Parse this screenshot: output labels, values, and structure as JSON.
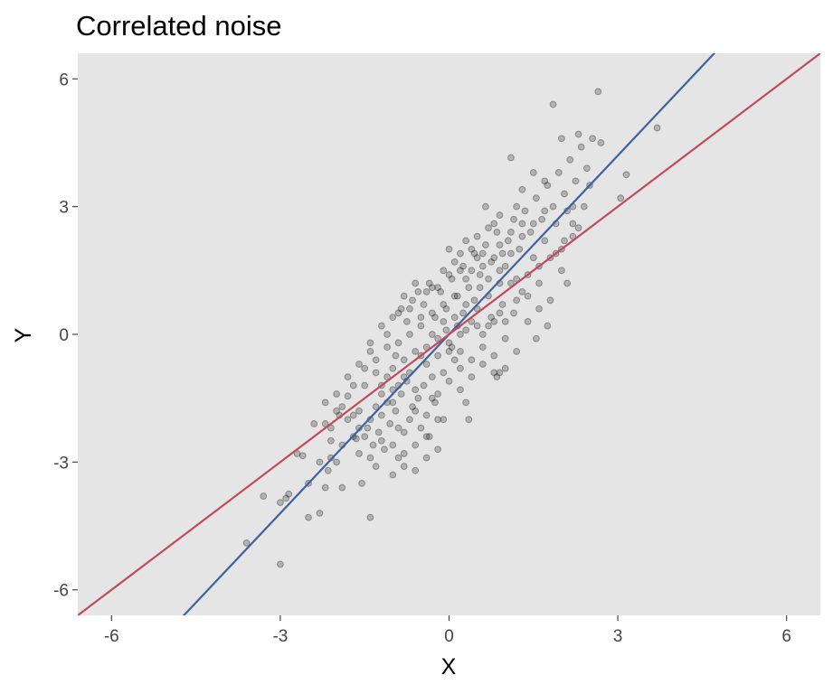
{
  "chart_data": {
    "type": "scatter",
    "title": "Correlated noise",
    "xlabel": "X",
    "ylabel": "Y",
    "xlim": [
      -6.6,
      6.6
    ],
    "ylim": [
      -6.6,
      6.6
    ],
    "x_ticks": [
      -6,
      -3,
      0,
      3,
      6
    ],
    "y_ticks": [
      -6,
      -3,
      0,
      3,
      6
    ],
    "x_tick_labels": [
      "-6",
      "-3",
      "0",
      "3",
      "6"
    ],
    "y_tick_labels": [
      "-6",
      "-3",
      "0",
      "3",
      "6"
    ],
    "grid": false,
    "panel_background": "#e5e5e5",
    "point_color": "#000000",
    "lines": [
      {
        "color": "#3f61a0",
        "slope": 1.4,
        "intercept": 0
      },
      {
        "color": "#c04a5e",
        "slope": 1.0,
        "intercept": 0
      }
    ],
    "points": [
      [
        -3.6,
        -4.9
      ],
      [
        -3.0,
        -5.4
      ],
      [
        -3.3,
        -3.8
      ],
      [
        -3.0,
        -3.95
      ],
      [
        -2.9,
        -3.85
      ],
      [
        -2.85,
        -3.75
      ],
      [
        -2.5,
        -4.3
      ],
      [
        -2.3,
        -4.2
      ],
      [
        -2.2,
        -3.6
      ],
      [
        -2.15,
        -3.2
      ],
      [
        -2.0,
        -3.0
      ],
      [
        -1.9,
        -3.6
      ],
      [
        -1.4,
        -4.3
      ],
      [
        -2.6,
        -2.85
      ],
      [
        -2.7,
        -2.8
      ],
      [
        -2.1,
        -2.9
      ],
      [
        -2.1,
        -2.2
      ],
      [
        -1.95,
        -1.9
      ],
      [
        -1.8,
        -1.45
      ],
      [
        -1.7,
        -1.9
      ],
      [
        -1.65,
        -2.45
      ],
      [
        -1.6,
        -2.8
      ],
      [
        -1.55,
        -3.5
      ],
      [
        -1.5,
        -2.4
      ],
      [
        -1.45,
        -2.2
      ],
      [
        -1.4,
        -2.0
      ],
      [
        -1.35,
        -2.6
      ],
      [
        -1.3,
        -1.7
      ],
      [
        -1.25,
        -2.3
      ],
      [
        -1.2,
        -1.9
      ],
      [
        -1.15,
        -2.7
      ],
      [
        -1.1,
        -1.6
      ],
      [
        -1.05,
        -2.1
      ],
      [
        -1.0,
        -1.3
      ],
      [
        -0.95,
        -1.8
      ],
      [
        -0.9,
        -2.9
      ],
      [
        -0.85,
        -1.4
      ],
      [
        -0.8,
        -2.3
      ],
      [
        -0.75,
        -1.1
      ],
      [
        -0.7,
        -2.0
      ],
      [
        -0.65,
        -1.7
      ],
      [
        -0.6,
        -2.6
      ],
      [
        -0.55,
        -1.5
      ],
      [
        -0.5,
        -2.2
      ],
      [
        -0.45,
        -1.2
      ],
      [
        -0.4,
        -1.9
      ],
      [
        -0.35,
        -2.4
      ],
      [
        -0.3,
        -1.0
      ],
      [
        -0.25,
        -1.6
      ],
      [
        -0.2,
        -2.0
      ],
      [
        -1.3,
        -3.1
      ],
      [
        -1.0,
        -3.3
      ],
      [
        -0.8,
        -3.1
      ],
      [
        -0.6,
        -3.2
      ],
      [
        -0.4,
        -2.9
      ],
      [
        -1.7,
        -2.4
      ],
      [
        -1.5,
        -1.2
      ],
      [
        -1.6,
        -1.8
      ],
      [
        -1.4,
        -0.4
      ],
      [
        -1.3,
        -0.9
      ],
      [
        -1.1,
        -0.3
      ],
      [
        -1.0,
        -0.8
      ],
      [
        -0.9,
        -0.2
      ],
      [
        -0.8,
        -0.6
      ],
      [
        -0.7,
        0.0
      ],
      [
        -0.6,
        -0.4
      ],
      [
        -0.5,
        0.2
      ],
      [
        -0.4,
        -0.3
      ],
      [
        -0.3,
        0.5
      ],
      [
        -0.2,
        -0.1
      ],
      [
        -0.1,
        0.3
      ],
      [
        0.0,
        -0.2
      ],
      [
        0.1,
        0.4
      ],
      [
        0.2,
        -0.4
      ],
      [
        0.3,
        0.1
      ],
      [
        0.4,
        -0.6
      ],
      [
        0.5,
        0.6
      ],
      [
        0.6,
        -0.3
      ],
      [
        0.7,
        0.2
      ],
      [
        0.8,
        -0.9
      ],
      [
        0.9,
        0.5
      ],
      [
        1.0,
        -0.1
      ],
      [
        -1.2,
        -1.4
      ],
      [
        -1.1,
        -1.0
      ],
      [
        -0.95,
        -0.5
      ],
      [
        -0.85,
        0.6
      ],
      [
        -0.75,
        0.3
      ],
      [
        -0.65,
        0.8
      ],
      [
        -0.55,
        1.0
      ],
      [
        -0.45,
        0.7
      ],
      [
        -0.35,
        1.2
      ],
      [
        -0.25,
        0.4
      ],
      [
        -0.15,
        1.0
      ],
      [
        -0.05,
        0.6
      ],
      [
        0.05,
        1.3
      ],
      [
        0.15,
        0.9
      ],
      [
        0.25,
        1.6
      ],
      [
        0.35,
        1.1
      ],
      [
        0.45,
        1.9
      ],
      [
        0.55,
        1.4
      ],
      [
        0.65,
        2.1
      ],
      [
        0.75,
        1.7
      ],
      [
        0.85,
        2.4
      ],
      [
        0.95,
        1.9
      ],
      [
        1.05,
        2.2
      ],
      [
        1.15,
        2.7
      ],
      [
        1.25,
        2.0
      ],
      [
        1.35,
        2.9
      ],
      [
        1.45,
        2.4
      ],
      [
        1.55,
        3.2
      ],
      [
        1.65,
        2.7
      ],
      [
        1.75,
        3.5
      ],
      [
        1.85,
        3.0
      ],
      [
        1.95,
        3.8
      ],
      [
        2.05,
        3.3
      ],
      [
        2.15,
        4.1
      ],
      [
        2.25,
        3.6
      ],
      [
        2.35,
        4.4
      ],
      [
        2.45,
        3.9
      ],
      [
        2.55,
        4.6
      ],
      [
        1.85,
        5.4
      ],
      [
        2.65,
        5.7
      ],
      [
        2.7,
        4.5
      ],
      [
        3.7,
        4.85
      ],
      [
        3.15,
        3.75
      ],
      [
        3.05,
        3.2
      ],
      [
        2.3,
        4.7
      ],
      [
        2.0,
        4.6
      ],
      [
        1.1,
        4.15
      ],
      [
        1.5,
        3.8
      ],
      [
        1.7,
        3.6
      ],
      [
        1.3,
        3.4
      ],
      [
        0.65,
        3.0
      ],
      [
        0.8,
        2.6
      ],
      [
        1.2,
        3.0
      ],
      [
        2.2,
        3.0
      ],
      [
        2.5,
        3.5
      ],
      [
        2.3,
        2.5
      ],
      [
        2.05,
        2.2
      ],
      [
        2.2,
        2.3
      ],
      [
        1.0,
        1.6
      ],
      [
        1.2,
        1.3
      ],
      [
        1.4,
        0.9
      ],
      [
        1.6,
        1.2
      ],
      [
        1.8,
        0.8
      ],
      [
        2.0,
        1.5
      ],
      [
        2.1,
        1.2
      ],
      [
        1.9,
        1.9
      ],
      [
        1.7,
        2.2
      ],
      [
        1.5,
        1.8
      ],
      [
        1.3,
        2.3
      ],
      [
        1.1,
        1.9
      ],
      [
        0.9,
        1.2
      ],
      [
        0.7,
        0.9
      ],
      [
        0.5,
        0.2
      ],
      [
        0.3,
        0.7
      ],
      [
        0.1,
        -0.6
      ],
      [
        -0.1,
        -0.9
      ],
      [
        0.2,
        -1.3
      ],
      [
        0.4,
        -1.0
      ],
      [
        0.6,
        -0.7
      ],
      [
        0.8,
        -0.5
      ],
      [
        1.0,
        -0.8
      ],
      [
        1.2,
        -0.4
      ],
      [
        1.4,
        0.3
      ],
      [
        1.6,
        0.6
      ],
      [
        1.75,
        0.2
      ],
      [
        1.55,
        -0.1
      ],
      [
        0.9,
        -0.9
      ],
      [
        0.85,
        -1.0
      ],
      [
        0.3,
        -1.6
      ],
      [
        0.0,
        -1.1
      ],
      [
        -0.2,
        -1.4
      ],
      [
        0.35,
        -2.0
      ],
      [
        0.2,
        -0.8
      ],
      [
        0.05,
        -0.3
      ],
      [
        -0.05,
        0.1
      ],
      [
        0.15,
        0.2
      ],
      [
        0.25,
        0.5
      ],
      [
        0.45,
        0.8
      ],
      [
        0.55,
        1.1
      ],
      [
        0.75,
        0.4
      ],
      [
        0.95,
        0.7
      ],
      [
        1.15,
        0.5
      ],
      [
        0.6,
        1.6
      ],
      [
        0.4,
        1.5
      ],
      [
        0.2,
        1.9
      ],
      [
        0.0,
        2.0
      ],
      [
        0.3,
        2.2
      ],
      [
        0.5,
        2.3
      ],
      [
        0.7,
        2.5
      ],
      [
        0.9,
        2.8
      ],
      [
        0.1,
        1.7
      ],
      [
        -0.1,
        1.5
      ],
      [
        -0.3,
        1.1
      ],
      [
        -0.5,
        0.4
      ],
      [
        -0.7,
        0.6
      ],
      [
        -0.9,
        0.5
      ],
      [
        -1.1,
        0.0
      ],
      [
        -1.3,
        -0.6
      ],
      [
        -1.5,
        -0.8
      ],
      [
        -1.7,
        -1.2
      ],
      [
        -1.9,
        -1.7
      ],
      [
        -2.1,
        -2.5
      ],
      [
        -2.3,
        -3.0
      ],
      [
        -2.5,
        -3.5
      ],
      [
        -1.8,
        -2.0
      ],
      [
        -1.6,
        -2.2
      ],
      [
        -1.2,
        -2.5
      ],
      [
        -0.9,
        -2.2
      ],
      [
        -0.6,
        -1.8
      ],
      [
        -0.3,
        -1.5
      ],
      [
        -0.1,
        -2.0
      ],
      [
        -0.4,
        -2.4
      ],
      [
        -0.2,
        -2.7
      ],
      [
        -0.8,
        -2.8
      ],
      [
        -1.0,
        -2.6
      ],
      [
        -1.4,
        -2.9
      ],
      [
        -1.9,
        -2.6
      ],
      [
        -2.2,
        -2.1
      ],
      [
        -2.0,
        -1.8
      ],
      [
        -1.2,
        -1.2
      ],
      [
        -1.0,
        -1.6
      ],
      [
        -0.8,
        -1.0
      ],
      [
        -0.6,
        -1.3
      ],
      [
        -0.4,
        -0.7
      ],
      [
        -0.2,
        -0.5
      ],
      [
        0.0,
        -0.4
      ],
      [
        0.2,
        0.0
      ],
      [
        0.4,
        0.3
      ],
      [
        0.6,
        0.0
      ],
      [
        0.8,
        0.3
      ],
      [
        1.0,
        0.3
      ],
      [
        1.2,
        0.8
      ],
      [
        1.4,
        1.4
      ],
      [
        1.6,
        1.6
      ],
      [
        1.8,
        1.8
      ],
      [
        2.0,
        2.0
      ],
      [
        2.2,
        2.6
      ],
      [
        2.4,
        3.0
      ],
      [
        1.3,
        1.0
      ],
      [
        1.1,
        1.2
      ],
      [
        0.9,
        1.5
      ],
      [
        0.7,
        1.3
      ],
      [
        0.5,
        1.8
      ],
      [
        0.3,
        1.3
      ],
      [
        0.1,
        0.9
      ],
      [
        -0.1,
        0.7
      ],
      [
        -0.3,
        0.0
      ],
      [
        -0.5,
        -0.5
      ],
      [
        -0.7,
        -0.9
      ],
      [
        -0.9,
        -1.2
      ],
      [
        1.9,
        2.6
      ],
      [
        2.1,
        2.9
      ],
      [
        1.7,
        2.9
      ],
      [
        1.5,
        2.6
      ],
      [
        1.3,
        2.6
      ],
      [
        1.1,
        2.4
      ],
      [
        0.9,
        2.1
      ],
      [
        0.8,
        1.8
      ],
      [
        0.6,
        1.9
      ],
      [
        0.4,
        2.0
      ],
      [
        0.2,
        1.5
      ],
      [
        0.0,
        1.4
      ],
      [
        -0.2,
        1.1
      ],
      [
        -0.4,
        1.0
      ],
      [
        -0.6,
        1.2
      ],
      [
        -0.8,
        0.9
      ],
      [
        -1.0,
        0.4
      ],
      [
        -1.2,
        0.2
      ],
      [
        -1.4,
        -0.2
      ],
      [
        -1.6,
        -0.7
      ],
      [
        -1.8,
        -1.0
      ],
      [
        -2.0,
        -1.4
      ],
      [
        -2.2,
        -1.6
      ],
      [
        -2.4,
        -2.1
      ]
    ]
  }
}
